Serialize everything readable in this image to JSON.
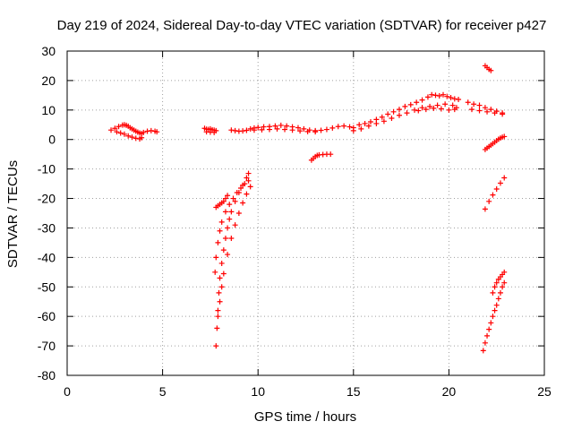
{
  "chart_data": {
    "type": "scatter",
    "title": "Day 219 of 2024, Sidereal Day-to-day VTEC variation (SDTVAR) for receiver p427",
    "xlabel": "GPS time / hours",
    "ylabel": "SDTVAR / TECUs",
    "xlim": [
      0,
      25
    ],
    "ylim": [
      -80,
      30
    ],
    "xticks": [
      "0",
      "5",
      "10",
      "15",
      "20",
      "25"
    ],
    "yticks": [
      "30",
      "20",
      "10",
      "0",
      "-10",
      "-20",
      "-30",
      "-40",
      "-50",
      "-60",
      "-70",
      "-80"
    ],
    "grid": true,
    "marker": "plus",
    "color": "#ff0000",
    "series": [
      {
        "x": [
          2.3,
          2.5,
          2.7,
          2.9,
          3.0,
          3.1,
          3.2,
          3.3,
          3.4,
          3.5,
          3.6,
          3.7,
          3.8,
          3.9,
          4.0,
          4.2,
          4.4,
          4.6,
          4.7,
          2.6,
          2.8,
          3.0,
          3.2,
          3.4,
          3.6,
          3.8,
          3.9
        ],
        "y": [
          3.2,
          3.8,
          4.4,
          4.9,
          5.0,
          4.8,
          4.5,
          4.0,
          3.6,
          3.2,
          2.8,
          2.5,
          2.2,
          2.0,
          2.4,
          2.8,
          3.0,
          2.8,
          2.6,
          2.6,
          2.2,
          1.8,
          1.2,
          0.8,
          0.4,
          0.2,
          0.6
        ]
      },
      {
        "x": [
          7.2,
          7.3,
          7.4,
          7.5,
          7.6,
          7.7,
          7.8,
          7.3,
          7.5,
          7.7
        ],
        "y": [
          3.8,
          3.5,
          3.4,
          3.6,
          3.3,
          3.2,
          3.0,
          2.6,
          2.5,
          2.4
        ]
      },
      {
        "x": [
          8.6,
          8.8,
          9.0,
          9.2,
          9.4,
          9.6,
          9.8,
          10.0,
          10.3,
          10.6,
          10.9,
          11.2,
          11.5,
          11.8,
          12.1,
          12.4,
          12.7,
          13.0,
          13.3,
          13.6,
          13.9,
          14.2,
          14.5,
          14.8,
          9.8,
          10.2,
          10.6,
          11.0,
          11.4,
          11.8,
          12.2,
          12.6,
          13.0
        ],
        "y": [
          3.2,
          3.0,
          2.8,
          2.9,
          3.1,
          3.6,
          3.9,
          4.1,
          4.3,
          4.4,
          4.6,
          4.8,
          4.6,
          4.3,
          4.0,
          3.6,
          3.2,
          3.0,
          3.1,
          3.4,
          3.9,
          4.4,
          4.6,
          4.3,
          3.2,
          3.3,
          3.4,
          3.6,
          3.4,
          3.2,
          2.9,
          2.7,
          2.6
        ]
      },
      {
        "x": [
          12.8,
          12.9,
          13.0,
          13.1,
          13.2,
          13.4,
          13.6,
          13.8
        ],
        "y": [
          -7.0,
          -6.4,
          -5.8,
          -5.4,
          -5.2,
          -5.1,
          -5.0,
          -5.0
        ]
      },
      {
        "x": [
          15.0,
          15.3,
          15.6,
          15.9,
          16.2,
          16.5,
          16.8,
          17.1,
          17.4,
          17.7,
          18.0,
          18.3,
          18.6,
          18.9,
          19.1,
          19.3,
          19.5,
          19.7,
          19.9,
          20.1,
          20.3,
          20.5,
          15.0,
          15.4,
          15.8,
          16.2,
          16.6,
          17.0,
          17.4,
          17.8,
          18.2,
          18.6,
          19.0,
          19.4,
          19.8,
          20.2,
          20.4,
          20.3,
          20.0,
          19.6,
          19.2,
          18.8,
          18.4
        ],
        "y": [
          4.0,
          5.0,
          5.4,
          6.0,
          6.8,
          7.6,
          8.6,
          9.4,
          10.2,
          11.2,
          11.8,
          12.6,
          13.4,
          14.4,
          15.2,
          15.0,
          14.8,
          15.2,
          14.6,
          14.2,
          13.8,
          13.6,
          3.0,
          3.6,
          4.6,
          5.4,
          6.2,
          7.2,
          8.2,
          9.0,
          10.0,
          10.8,
          11.2,
          11.6,
          12.0,
          11.6,
          10.8,
          10.2,
          10.0,
          10.4,
          10.6,
          10.2,
          9.8
        ]
      },
      {
        "x": [
          21.0,
          21.3,
          21.6,
          21.9,
          22.2,
          22.5,
          22.8,
          21.2,
          21.6,
          22.0,
          22.4,
          22.8
        ],
        "y": [
          12.6,
          12.0,
          11.6,
          10.8,
          10.2,
          9.6,
          9.0,
          10.2,
          9.8,
          9.4,
          9.0,
          8.6
        ]
      },
      {
        "x": [
          21.9,
          22.0,
          22.1,
          22.2
        ],
        "y": [
          25.0,
          24.4,
          23.8,
          23.4
        ]
      },
      {
        "x": [
          21.9,
          22.0,
          22.1,
          22.2,
          22.3,
          22.4,
          22.5,
          22.6,
          22.7,
          22.8,
          22.9
        ],
        "y": [
          -3.4,
          -2.9,
          -2.4,
          -1.9,
          -1.4,
          -0.9,
          -0.4,
          0.1,
          0.5,
          0.8,
          1.0
        ]
      },
      {
        "x": [
          21.9,
          22.1,
          22.3,
          22.5,
          22.7,
          22.9
        ],
        "y": [
          -23.6,
          -21.0,
          -18.8,
          -16.8,
          -14.8,
          -13.0
        ]
      },
      {
        "x": [
          22.3,
          22.4,
          22.5,
          22.6,
          22.7,
          22.8,
          22.9
        ],
        "y": [
          -52.0,
          -50.0,
          -48.6,
          -47.4,
          -46.6,
          -45.8,
          -45.0
        ]
      },
      {
        "x": [
          21.8,
          21.9,
          22.0,
          22.1,
          22.2,
          22.3,
          22.4,
          22.5,
          22.6,
          22.7,
          22.8,
          22.9
        ],
        "y": [
          -71.6,
          -69.0,
          -66.6,
          -64.4,
          -62.2,
          -60.0,
          -58.0,
          -56.2,
          -54.0,
          -52.0,
          -50.0,
          -48.6
        ]
      },
      {
        "x": [
          7.8,
          7.85,
          7.9,
          7.95,
          8.0,
          8.1,
          8.2,
          8.3,
          8.4,
          8.5,
          8.6,
          8.8,
          9.0,
          9.2,
          9.4,
          9.5
        ],
        "y": [
          -70.0,
          -64.0,
          -58.0,
          -52.0,
          -47.0,
          -42.0,
          -37.5,
          -33.5,
          -30.0,
          -27.0,
          -24.5,
          -21.0,
          -18.0,
          -15.5,
          -13.0,
          -11.5
        ]
      },
      {
        "x": [
          7.75,
          7.8,
          7.9,
          8.0,
          8.1,
          8.3,
          8.5,
          8.7,
          8.9,
          9.1,
          9.3,
          9.5
        ],
        "y": [
          -45.0,
          -40.0,
          -35.0,
          -31.0,
          -28.0,
          -24.5,
          -22.0,
          -20.0,
          -18.0,
          -16.5,
          -15.0,
          -14.0
        ]
      },
      {
        "x": [
          7.9,
          8.0,
          8.1,
          8.2,
          8.4,
          8.6,
          8.8,
          9.0,
          9.2,
          9.4,
          9.6
        ],
        "y": [
          -60.0,
          -55.0,
          -50.0,
          -45.5,
          -39.0,
          -33.5,
          -29.0,
          -25.0,
          -21.5,
          -18.5,
          -16.0
        ]
      },
      {
        "x": [
          7.8,
          7.9,
          8.0,
          8.1,
          8.2,
          8.3,
          8.4
        ],
        "y": [
          -23.0,
          -22.5,
          -22.0,
          -21.5,
          -21.0,
          -20.0,
          -19.0
        ]
      }
    ]
  }
}
